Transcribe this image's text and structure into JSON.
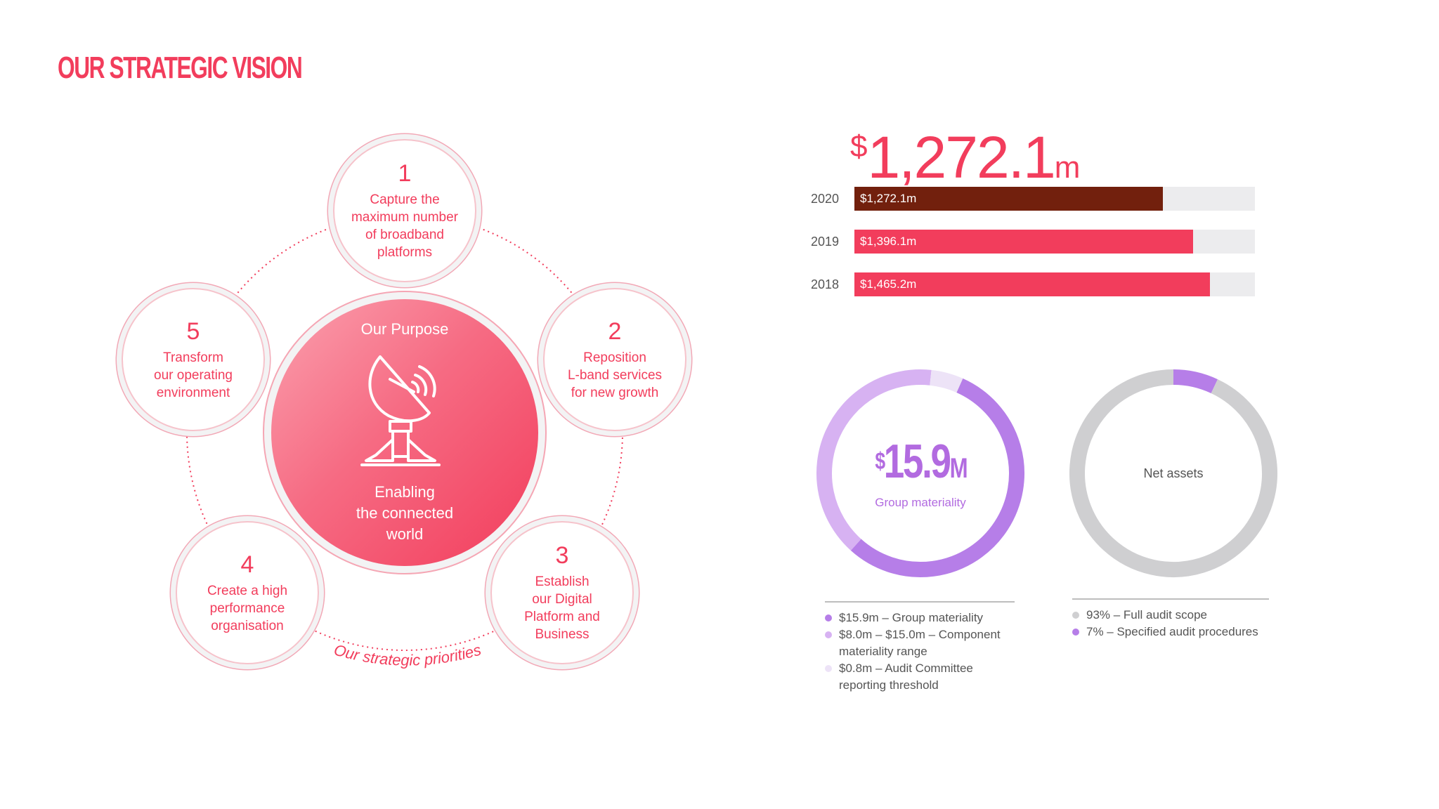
{
  "header": {
    "title": "OUR STRATEGIC VISION"
  },
  "diagram": {
    "purpose_title": "Our Purpose",
    "purpose_text": "Enabling\nthe connected\nworld",
    "arc_label": "Our strategic priorities",
    "priorities": [
      {
        "num": "1",
        "text": "Capture the\nmaximum number\nof broadband\nplatforms"
      },
      {
        "num": "2",
        "text": "Reposition\nL-band services\nfor new growth"
      },
      {
        "num": "3",
        "text": "Establish\nour Digital\nPlatform and\nBusiness"
      },
      {
        "num": "4",
        "text": "Create a high\nperformance\norganisation"
      },
      {
        "num": "5",
        "text": "Transform\nour operating\nenvironment"
      }
    ]
  },
  "headline": {
    "currency": "$",
    "number": "1,272.1",
    "unit": "m"
  },
  "materiality": {
    "currency": "$",
    "number": "15.9",
    "unit": "M",
    "label": "Group materiality"
  },
  "net_assets": {
    "label": "Net assets"
  },
  "chart_data": [
    {
      "type": "bar",
      "orientation": "horizontal",
      "categories": [
        "2020",
        "2019",
        "2018"
      ],
      "values": [
        1272.1,
        1396.1,
        1465.2
      ],
      "labels": [
        "$1,272.1m",
        "$1,396.1m",
        "$1,465.2m"
      ],
      "colors": [
        "#72200d",
        "#f23d5c",
        "#f23d5c"
      ],
      "xlim": [
        0,
        1650
      ]
    },
    {
      "type": "pie",
      "donut": true,
      "segments": [
        {
          "label": "$15.9m – Group materiality",
          "share": 0.55,
          "color": "#b67ee8"
        },
        {
          "label": "$8.0m – $15.0m – Component\nmateriality range",
          "share": 0.4,
          "color": "#d7b2f2"
        },
        {
          "label": "$0.8m – Audit Committee\nreporting threshold",
          "share": 0.05,
          "color": "#ede3f7"
        }
      ]
    },
    {
      "type": "pie",
      "donut": true,
      "segments": [
        {
          "label": "93% – Full audit scope",
          "value": 93,
          "color": "#cfcfd1"
        },
        {
          "label": "7% – Specified audit procedures",
          "value": 7,
          "color": "#b67ee8"
        }
      ]
    }
  ]
}
